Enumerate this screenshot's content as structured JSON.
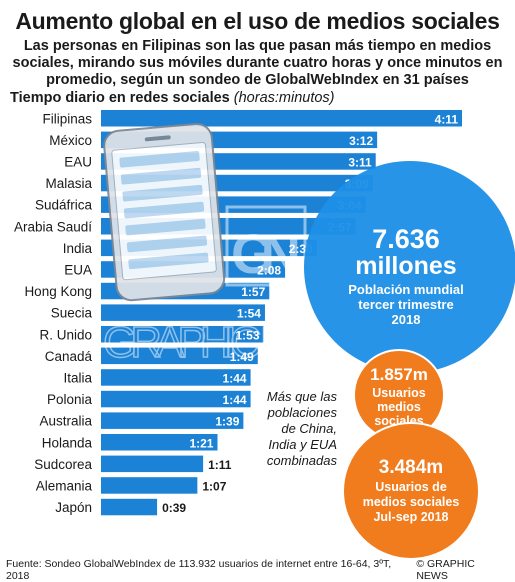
{
  "header": {
    "title": "Aumento global en el uso de medios sociales",
    "subtitle": "Las personas en Filipinas son las que pasan más tiempo en medios sociales, mirando sus móviles durante cuatro horas y once minutos en promedio, según un sondeo de GlobalWebIndex en 31 países"
  },
  "chart_data": {
    "type": "bar",
    "orientation": "horizontal",
    "title": "Tiempo diario en redes sociales",
    "units": "(horas:minutos)",
    "categories": [
      "Filipinas",
      "México",
      "EAU",
      "Malasia",
      "Sudáfrica",
      "Arabia Saudí",
      "India",
      "EUA",
      "Hong Kong",
      "Suecia",
      "R. Unido",
      "Canadá",
      "Italia",
      "Polonia",
      "Australia",
      "Holanda",
      "Sudcorea",
      "Alemania",
      "Japón"
    ],
    "values": [
      251,
      192,
      191,
      189,
      184,
      177,
      150,
      128,
      117,
      114,
      113,
      109,
      104,
      104,
      99,
      81,
      71,
      67,
      39
    ],
    "labels": [
      "4:11",
      "3:12",
      "3:11",
      "3:09",
      "3:04",
      "2:57",
      "2:30",
      "2:08",
      "1:57",
      "1:54",
      "1:53",
      "1:49",
      "1:44",
      "1:44",
      "1:39",
      "1:21",
      "1:11",
      "1:07",
      "0:39"
    ],
    "bar_color": "#1b82d6"
  },
  "callouts": {
    "world": {
      "value": "7.636",
      "unit": "millones",
      "caption": [
        "Población mundial",
        "tercer trimestre",
        "2018"
      ],
      "color": "#1e90e6"
    },
    "users_2014": {
      "value": "1.857m",
      "caption": [
        "Usuarios",
        "medios",
        "sociales",
        "2014"
      ],
      "color": "#f07c1e"
    },
    "users_2018": {
      "value": "3.484m",
      "caption": [
        "Usuarios de",
        "medios sociales",
        "Jul-sep 2018"
      ],
      "color": "#f07c1e"
    },
    "note": [
      "Más que las",
      "poblaciones",
      "de China,",
      "India y EUA",
      "combinadas"
    ]
  },
  "watermark": {
    "logo": "GN",
    "text": "GRAPHIC NEWS"
  },
  "footer": {
    "source": "Fuente: Sondeo GlobalWebIndex de 113.932 usuarios de internet entre 16-64, 3ºT, 2018",
    "credit": "© GRAPHIC NEWS"
  }
}
